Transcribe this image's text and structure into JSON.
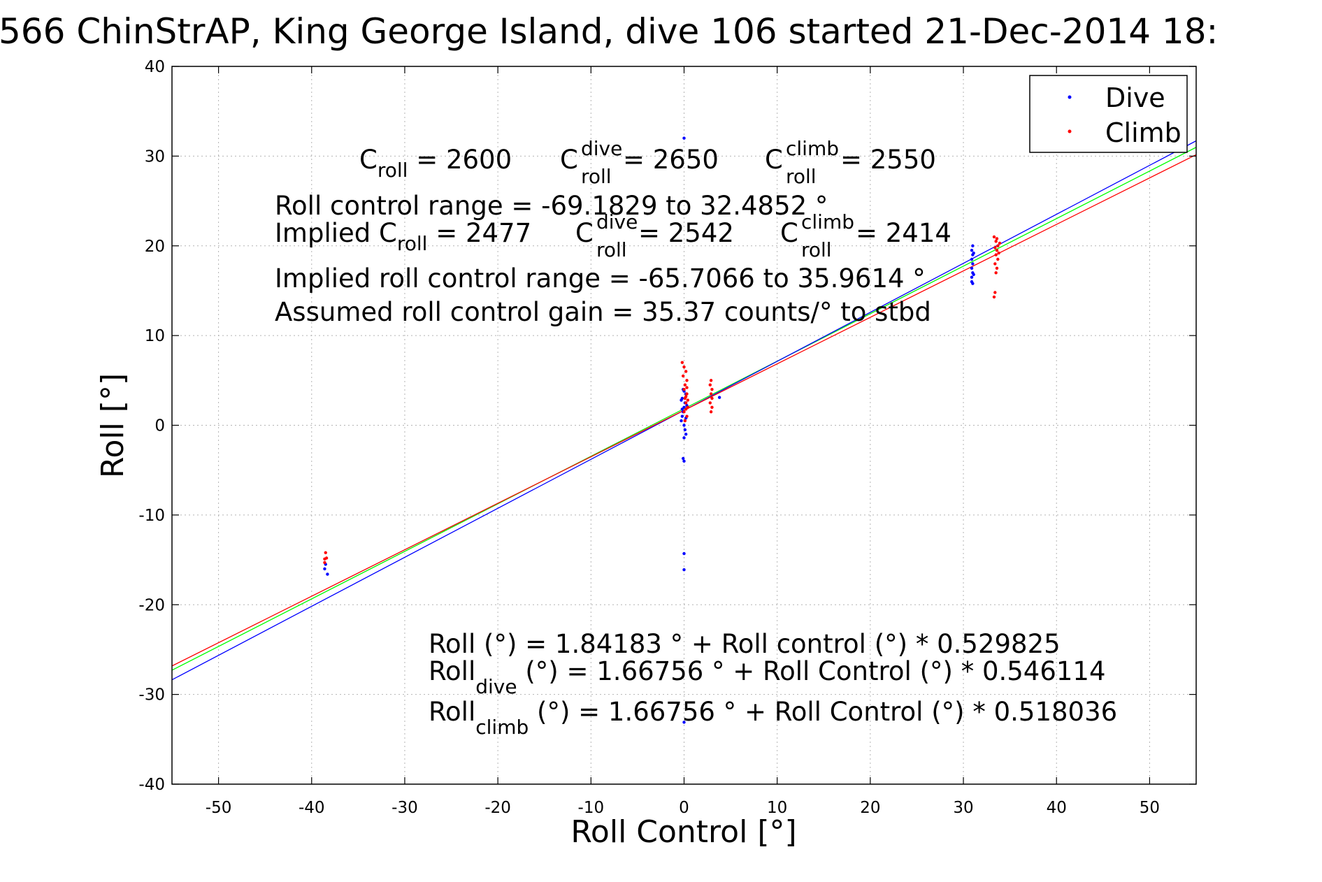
{
  "chart_data": {
    "type": "scatter",
    "title": "566 ChinStrAP, King George Island, dive 106 started 21-Dec-2014 18:",
    "xlabel": "Roll Control [°]",
    "ylabel": "Roll [°]",
    "xlim": [
      -55,
      55
    ],
    "ylim": [
      -40,
      40
    ],
    "xticks": [
      -50,
      -40,
      -30,
      -20,
      -10,
      0,
      10,
      20,
      30,
      40,
      50
    ],
    "yticks": [
      -40,
      -30,
      -20,
      -10,
      0,
      10,
      20,
      30,
      40
    ],
    "grid": true,
    "legend_position": "top-right",
    "series": [
      {
        "name": "Dive",
        "color": "#0000ff",
        "points": [
          [
            -38.6,
            -16.0
          ],
          [
            -38.3,
            -16.6
          ],
          [
            -38.5,
            -15.5
          ],
          [
            -0.3,
            0.5
          ],
          [
            -0.2,
            1.0
          ],
          [
            -0.1,
            1.5
          ],
          [
            0.0,
            2.0
          ],
          [
            0.1,
            2.5
          ],
          [
            -0.2,
            3.0
          ],
          [
            0.2,
            3.5
          ],
          [
            -0.1,
            4.0
          ],
          [
            0.0,
            0.0
          ],
          [
            0.1,
            -0.5
          ],
          [
            0.2,
            -1.0
          ],
          [
            0.0,
            -1.4
          ],
          [
            -0.2,
            1.8
          ],
          [
            0.3,
            2.2
          ],
          [
            0.2,
            0.8
          ],
          [
            -0.3,
            2.8
          ],
          [
            0.0,
            3.8
          ],
          [
            -0.1,
            -3.7
          ],
          [
            0.0,
            -4.0
          ],
          [
            0.0,
            -14.3
          ],
          [
            0.0,
            -16.1
          ],
          [
            0.0,
            -33.1
          ],
          [
            0.0,
            32.0
          ],
          [
            3.8,
            3.1
          ],
          [
            30.9,
            16.0
          ],
          [
            30.9,
            16.5
          ],
          [
            31.0,
            17.0
          ],
          [
            30.9,
            17.5
          ],
          [
            31.0,
            18.0
          ],
          [
            30.9,
            18.5
          ],
          [
            31.0,
            19.0
          ],
          [
            30.9,
            19.5
          ],
          [
            31.0,
            20.0
          ],
          [
            31.1,
            16.8
          ],
          [
            31.0,
            15.8
          ],
          [
            31.1,
            19.2
          ]
        ]
      },
      {
        "name": "Climb",
        "color": "#ff0000",
        "points": [
          [
            -38.6,
            -15.3
          ],
          [
            -38.4,
            -14.8
          ],
          [
            -38.5,
            -14.2
          ],
          [
            -38.6,
            -14.9
          ],
          [
            -0.2,
            7.0
          ],
          [
            0.0,
            6.5
          ],
          [
            0.2,
            6.0
          ],
          [
            -0.1,
            5.5
          ],
          [
            0.3,
            5.0
          ],
          [
            0.1,
            4.5
          ],
          [
            0.0,
            4.0
          ],
          [
            0.3,
            3.5
          ],
          [
            0.1,
            3.0
          ],
          [
            0.2,
            2.5
          ],
          [
            0.4,
            2.0
          ],
          [
            0.0,
            1.5
          ],
          [
            0.3,
            1.0
          ],
          [
            0.1,
            0.5
          ],
          [
            0.2,
            3.2
          ],
          [
            0.4,
            2.8
          ],
          [
            0.3,
            4.2
          ],
          [
            0.2,
            1.8
          ],
          [
            2.9,
            5.0
          ],
          [
            2.8,
            4.5
          ],
          [
            3.0,
            4.0
          ],
          [
            2.9,
            3.5
          ],
          [
            3.0,
            3.0
          ],
          [
            2.8,
            2.5
          ],
          [
            3.0,
            2.0
          ],
          [
            2.9,
            1.5
          ],
          [
            33.3,
            21.0
          ],
          [
            33.5,
            20.5
          ],
          [
            33.7,
            20.0
          ],
          [
            33.4,
            19.8
          ],
          [
            33.6,
            19.5
          ],
          [
            33.8,
            19.2
          ],
          [
            33.5,
            19.0
          ],
          [
            33.7,
            18.5
          ],
          [
            33.4,
            18.0
          ],
          [
            33.6,
            17.5
          ],
          [
            33.5,
            17.0
          ],
          [
            33.3,
            14.3
          ],
          [
            33.4,
            14.8
          ],
          [
            33.9,
            20.3
          ],
          [
            33.6,
            20.8
          ]
        ]
      }
    ],
    "fit_lines": [
      {
        "color": "#00ff00",
        "intercept": 1.84183,
        "slope": 0.529825
      },
      {
        "color": "#0000ff",
        "intercept": 1.66756,
        "slope": 0.546114
      },
      {
        "color": "#ff0000",
        "intercept": 1.66756,
        "slope": 0.518036
      }
    ],
    "annotations": {
      "c_roll": "C",
      "c_roll_sub": "roll",
      "c_roll_value": " = 2600",
      "c_dive": "C",
      "c_dive_sup": "dive",
      "c_dive_sub": "roll",
      "c_dive_value": " = 2650",
      "c_climb": "C",
      "c_climb_sup": "climb",
      "c_climb_sub": "roll",
      "c_climb_value": " = 2550",
      "range": "Roll control range = -69.1829 to 32.4852 °",
      "implied_c": "Implied C",
      "implied_c_sub": "roll",
      "implied_c_value": " = 2477",
      "implied_dive": "C",
      "implied_dive_sup": "dive",
      "implied_dive_sub": "roll",
      "implied_dive_value": " = 2542",
      "implied_climb": "C",
      "implied_climb_sup": "climb",
      "implied_climb_sub": "roll",
      "implied_climb_value": " = 2414",
      "implied_range": "Implied roll control range = -65.7066 to 35.9614 °",
      "gain": "Assumed roll control gain = 35.37 counts/° to stbd",
      "eq1": "Roll (°) = 1.84183 ° + Roll control (°) * 0.529825",
      "eq2_a": "Roll",
      "eq2_sub": "dive",
      "eq2_b": " (°) = 1.66756 ° + Roll Control (°) * 0.546114",
      "eq3_a": "Roll",
      "eq3_sub": "climb",
      "eq3_b": " (°) = 1.66756 ° + Roll Control (°) * 0.518036"
    }
  }
}
